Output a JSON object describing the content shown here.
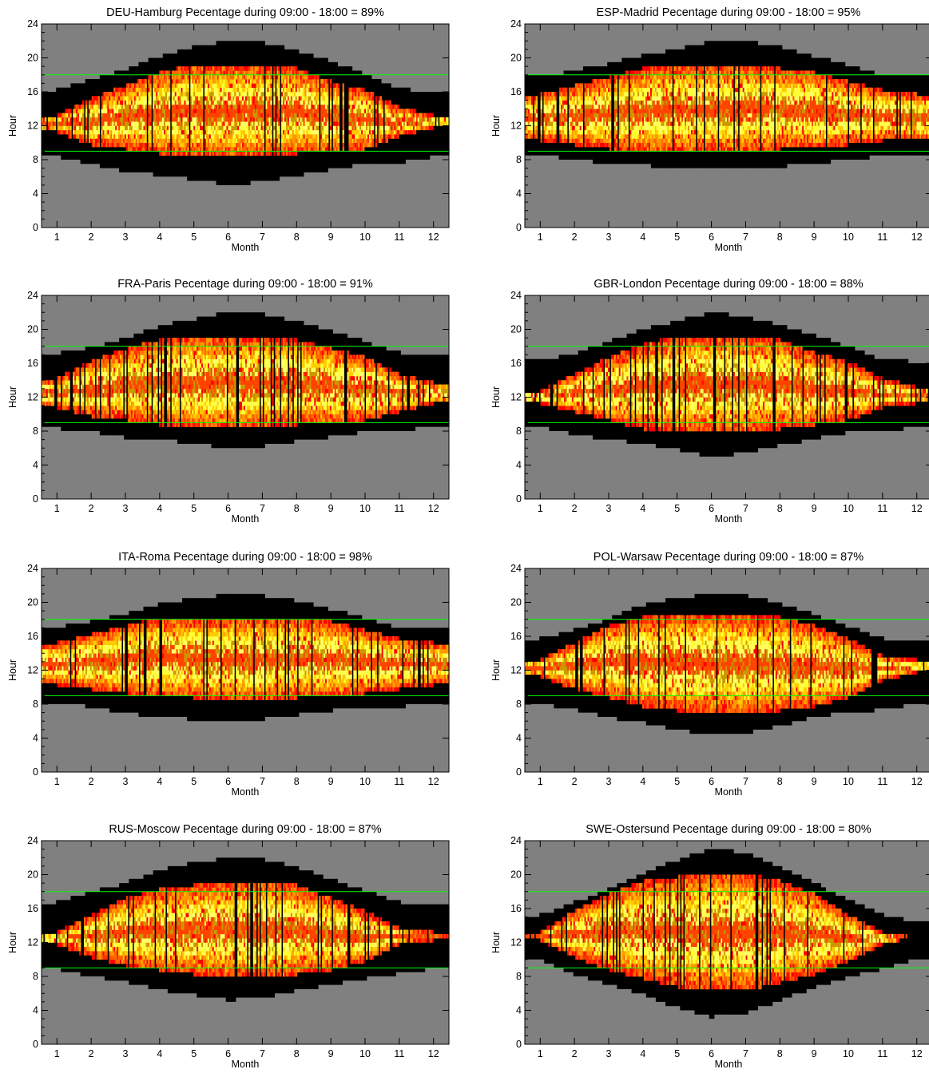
{
  "chart_data": [
    {
      "type": "heatmap",
      "title": "DEU-Hamburg  Pecentage during 09:00 - 18:00 =  89%",
      "xlabel": "Month",
      "ylabel": "Hour",
      "x_ticks": [
        "1",
        "2",
        "3",
        "4",
        "5",
        "6",
        "7",
        "8",
        "9",
        "10",
        "11",
        "12"
      ],
      "y_ticks": [
        "0",
        "4",
        "8",
        "12",
        "16",
        "20",
        "24"
      ],
      "xlim": [
        0.55,
        12.45
      ],
      "ylim": [
        0,
        24
      ],
      "reference_lines_hour": [
        9,
        18
      ],
      "reference_line_color": "#00ff00",
      "background_color": "#808080",
      "percentage": 89,
      "night_color": "#000000",
      "daylight_hours_by_month": {
        "month": [
          1,
          2,
          3,
          4,
          5,
          6,
          7,
          8,
          9,
          10,
          11,
          12
        ],
        "sunrise": [
          8.3,
          7.5,
          6.6,
          6.2,
          5.6,
          5.0,
          5.4,
          6.1,
          6.8,
          7.6,
          7.6,
          8.3
        ],
        "sunset": [
          16.2,
          17.4,
          18.6,
          20.2,
          21.4,
          22.0,
          21.8,
          20.9,
          19.6,
          18.1,
          16.4,
          16.0
        ]
      },
      "sunshine_band_by_month": {
        "month": [
          1,
          2,
          3,
          4,
          5,
          6,
          7,
          8,
          9,
          10,
          11,
          12
        ],
        "start": [
          11.5,
          10.0,
          9.5,
          9.0,
          8.5,
          8.5,
          8.5,
          9.0,
          9.0,
          9.5,
          11.0,
          12.0
        ],
        "end": [
          13.0,
          15.0,
          16.5,
          18.0,
          19.0,
          19.0,
          19.0,
          18.5,
          17.0,
          16.0,
          14.0,
          13.0
        ]
      }
    },
    {
      "type": "heatmap",
      "title": "ESP-Madrid  Pecentage during 09:00 - 18:00 =  95%",
      "xlabel": "Month",
      "ylabel": "Hour",
      "x_ticks": [
        "1",
        "2",
        "3",
        "4",
        "5",
        "6",
        "7",
        "8",
        "9",
        "10",
        "11",
        "12"
      ],
      "y_ticks": [
        "0",
        "4",
        "8",
        "12",
        "16",
        "20",
        "24"
      ],
      "xlim": [
        0.55,
        12.45
      ],
      "ylim": [
        0,
        24
      ],
      "reference_lines_hour": [
        9,
        18
      ],
      "reference_line_color": "#00ff00",
      "background_color": "#808080",
      "percentage": 95,
      "night_color": "#000000",
      "daylight_hours_by_month": {
        "month": [
          1,
          2,
          3,
          4,
          5,
          6,
          7,
          8,
          9,
          10,
          11,
          12
        ],
        "sunrise": [
          8.4,
          8.1,
          7.5,
          7.3,
          7.0,
          7.0,
          7.0,
          7.2,
          7.5,
          8.0,
          8.4,
          8.4
        ],
        "sunset": [
          17.8,
          18.5,
          19.3,
          20.3,
          21.0,
          22.0,
          22.0,
          21.3,
          20.2,
          19.2,
          18.0,
          17.8
        ]
      },
      "sunshine_band_by_month": {
        "month": [
          1,
          2,
          3,
          4,
          5,
          6,
          7,
          8,
          9,
          10,
          11,
          12
        ],
        "start": [
          10.5,
          10.0,
          9.5,
          9.0,
          9.0,
          9.0,
          9.0,
          9.5,
          9.5,
          10.0,
          10.5,
          10.5
        ],
        "end": [
          15.5,
          16.5,
          17.5,
          18.5,
          19.0,
          19.0,
          19.0,
          18.5,
          18.0,
          17.0,
          16.0,
          15.5
        ]
      }
    },
    {
      "type": "heatmap",
      "title": "FRA-Paris  Pecentage during 09:00 - 18:00 =  91%",
      "xlabel": "Month",
      "ylabel": "Hour",
      "x_ticks": [
        "1",
        "2",
        "3",
        "4",
        "5",
        "6",
        "7",
        "8",
        "9",
        "10",
        "11",
        "12"
      ],
      "y_ticks": [
        "0",
        "4",
        "8",
        "12",
        "16",
        "20",
        "24"
      ],
      "xlim": [
        0.55,
        12.45
      ],
      "ylim": [
        0,
        24
      ],
      "reference_lines_hour": [
        9,
        18
      ],
      "reference_line_color": "#00ff00",
      "background_color": "#808080",
      "percentage": 91,
      "night_color": "#000000",
      "daylight_hours_by_month": {
        "month": [
          1,
          2,
          3,
          4,
          5,
          6,
          7,
          8,
          9,
          10,
          11,
          12
        ],
        "sunrise": [
          8.3,
          8.0,
          7.2,
          7.0,
          6.5,
          6.0,
          6.2,
          6.8,
          7.3,
          7.9,
          8.2,
          8.3
        ],
        "sunset": [
          17.2,
          17.9,
          18.9,
          20.4,
          21.2,
          22.0,
          21.8,
          21.0,
          19.9,
          18.6,
          17.2,
          17.0
        ]
      },
      "sunshine_band_by_month": {
        "month": [
          1,
          2,
          3,
          4,
          5,
          6,
          7,
          8,
          9,
          10,
          11,
          12
        ],
        "start": [
          11.0,
          10.0,
          9.5,
          9.0,
          8.5,
          8.5,
          8.5,
          9.0,
          9.0,
          9.5,
          10.5,
          11.5
        ],
        "end": [
          14.0,
          16.0,
          17.5,
          18.5,
          19.0,
          19.0,
          19.0,
          18.5,
          17.5,
          16.5,
          14.5,
          13.5
        ]
      }
    },
    {
      "type": "heatmap",
      "title": "GBR-London  Pecentage during 09:00 - 18:00 =  88%",
      "xlabel": "Month",
      "ylabel": "Hour",
      "x_ticks": [
        "1",
        "2",
        "3",
        "4",
        "5",
        "6",
        "7",
        "8",
        "9",
        "10",
        "11",
        "12"
      ],
      "y_ticks": [
        "0",
        "4",
        "8",
        "12",
        "16",
        "20",
        "24"
      ],
      "xlim": [
        0.55,
        12.45
      ],
      "ylim": [
        0,
        24
      ],
      "reference_lines_hour": [
        9,
        18
      ],
      "reference_line_color": "#00ff00",
      "background_color": "#808080",
      "percentage": 88,
      "night_color": "#000000",
      "daylight_hours_by_month": {
        "month": [
          1,
          2,
          3,
          4,
          5,
          6,
          7,
          8,
          9,
          10,
          11,
          12
        ],
        "sunrise": [
          8.4,
          7.6,
          6.9,
          6.6,
          5.8,
          5.0,
          5.4,
          6.3,
          7.1,
          7.8,
          8.0,
          8.4
        ],
        "sunset": [
          16.3,
          17.2,
          18.5,
          20.0,
          21.0,
          22.0,
          21.5,
          20.5,
          19.4,
          18.0,
          16.4,
          16.2
        ]
      },
      "sunshine_band_by_month": {
        "month": [
          1,
          2,
          3,
          4,
          5,
          6,
          7,
          8,
          9,
          10,
          11,
          12
        ],
        "start": [
          11.5,
          10.5,
          9.5,
          8.5,
          8.0,
          8.0,
          8.0,
          8.5,
          9.0,
          9.5,
          11.0,
          11.5
        ],
        "end": [
          12.5,
          14.5,
          16.5,
          18.0,
          19.0,
          19.0,
          19.0,
          18.5,
          17.0,
          16.0,
          14.0,
          13.0
        ]
      }
    },
    {
      "type": "heatmap",
      "title": "ITA-Roma  Pecentage during 09:00 - 18:00 =  98%",
      "xlabel": "Month",
      "ylabel": "Hour",
      "x_ticks": [
        "1",
        "2",
        "3",
        "4",
        "5",
        "6",
        "7",
        "8",
        "9",
        "10",
        "11",
        "12"
      ],
      "y_ticks": [
        "0",
        "4",
        "8",
        "12",
        "16",
        "20",
        "24"
      ],
      "xlim": [
        0.55,
        12.45
      ],
      "ylim": [
        0,
        24
      ],
      "reference_lines_hour": [
        9,
        18
      ],
      "reference_line_color": "#00ff00",
      "background_color": "#808080",
      "percentage": 98,
      "night_color": "#000000",
      "daylight_hours_by_month": {
        "month": [
          1,
          2,
          3,
          4,
          5,
          6,
          7,
          8,
          9,
          10,
          11,
          12
        ],
        "sunrise": [
          8.0,
          7.7,
          6.9,
          6.5,
          6.2,
          6.0,
          6.2,
          6.7,
          7.2,
          7.7,
          7.7,
          8.0
        ],
        "sunset": [
          17.0,
          17.8,
          18.6,
          19.9,
          20.4,
          21.0,
          20.8,
          20.2,
          19.2,
          18.1,
          17.0,
          16.9
        ]
      },
      "sunshine_band_by_month": {
        "month": [
          1,
          2,
          3,
          4,
          5,
          6,
          7,
          8,
          9,
          10,
          11,
          12
        ],
        "start": [
          10.5,
          10.0,
          9.5,
          9.0,
          9.0,
          8.5,
          8.5,
          9.0,
          9.0,
          9.5,
          10.0,
          10.5
        ],
        "end": [
          15.0,
          16.0,
          17.0,
          18.0,
          18.0,
          18.0,
          18.0,
          18.0,
          17.5,
          16.5,
          15.5,
          15.0
        ]
      }
    },
    {
      "type": "heatmap",
      "title": "POL-Warsaw  Pecentage during 09:00 - 18:00 =  87%",
      "xlabel": "Month",
      "ylabel": "Hour",
      "x_ticks": [
        "1",
        "2",
        "3",
        "4",
        "5",
        "6",
        "7",
        "8",
        "9",
        "10",
        "11",
        "12"
      ],
      "y_ticks": [
        "0",
        "4",
        "8",
        "12",
        "16",
        "20",
        "24"
      ],
      "xlim": [
        0.55,
        12.45
      ],
      "ylim": [
        0,
        24
      ],
      "reference_lines_hour": [
        9,
        18
      ],
      "reference_line_color": "#00ff00",
      "background_color": "#808080",
      "percentage": 87,
      "night_color": "#000000",
      "daylight_hours_by_month": {
        "month": [
          1,
          2,
          3,
          4,
          5,
          6,
          7,
          8,
          9,
          10,
          11,
          12
        ],
        "sunrise": [
          8.0,
          7.3,
          6.4,
          5.8,
          5.0,
          4.3,
          4.6,
          5.5,
          6.4,
          7.1,
          7.3,
          8.0
        ],
        "sunset": [
          15.7,
          16.8,
          18.0,
          19.7,
          20.5,
          21.0,
          20.8,
          19.9,
          18.6,
          17.2,
          15.7,
          15.5
        ]
      },
      "sunshine_band_by_month": {
        "month": [
          1,
          2,
          3,
          4,
          5,
          6,
          7,
          8,
          9,
          10,
          11,
          12
        ],
        "start": [
          11.5,
          10.0,
          9.0,
          8.0,
          7.5,
          7.0,
          7.0,
          7.5,
          8.0,
          9.0,
          11.0,
          12.0
        ],
        "end": [
          13.0,
          15.0,
          17.0,
          18.0,
          18.5,
          18.5,
          18.5,
          18.0,
          17.0,
          15.5,
          13.5,
          13.0
        ]
      }
    },
    {
      "type": "heatmap",
      "title": "RUS-Moscow  Pecentage during 09:00 - 18:00 =  87%",
      "xlabel": "Month",
      "ylabel": "Hour",
      "x_ticks": [
        "1",
        "2",
        "3",
        "4",
        "5",
        "6",
        "7",
        "8",
        "9",
        "10",
        "11",
        "12"
      ],
      "y_ticks": [
        "0",
        "4",
        "8",
        "12",
        "16",
        "20",
        "24"
      ],
      "xlim": [
        0.55,
        12.45
      ],
      "ylim": [
        0,
        24
      ],
      "reference_lines_hour": [
        9,
        18
      ],
      "reference_line_color": "#00ff00",
      "background_color": "#808080",
      "percentage": 87,
      "night_color": "#000000",
      "daylight_hours_by_month": {
        "month": [
          1,
          2,
          3,
          4,
          5,
          6,
          7,
          8,
          9,
          10,
          11,
          12
        ],
        "sunrise": [
          8.9,
          8.0,
          7.3,
          6.4,
          5.8,
          5.2,
          5.5,
          6.3,
          7.0,
          7.7,
          8.3,
          8.9
        ],
        "sunset": [
          16.7,
          17.9,
          19.0,
          20.5,
          21.4,
          22.0,
          21.8,
          20.9,
          19.5,
          18.1,
          16.8,
          16.3
        ]
      },
      "sunshine_band_by_month": {
        "month": [
          1,
          2,
          3,
          4,
          5,
          6,
          7,
          8,
          9,
          10,
          11,
          12
        ],
        "start": [
          12.0,
          10.5,
          9.5,
          9.0,
          8.5,
          8.0,
          8.0,
          8.5,
          9.0,
          10.0,
          12.0,
          12.5
        ],
        "end": [
          13.0,
          15.0,
          17.0,
          18.0,
          18.5,
          19.0,
          19.0,
          18.5,
          17.0,
          15.5,
          13.5,
          13.0
        ]
      }
    },
    {
      "type": "heatmap",
      "title": "SWE-Ostersund  Pecentage during 09:00 - 18:00 =  80%",
      "xlabel": "Month",
      "ylabel": "Hour",
      "x_ticks": [
        "1",
        "2",
        "3",
        "4",
        "5",
        "6",
        "7",
        "8",
        "9",
        "10",
        "11",
        "12"
      ],
      "y_ticks": [
        "0",
        "4",
        "8",
        "12",
        "16",
        "20",
        "24"
      ],
      "xlim": [
        0.55,
        12.45
      ],
      "ylim": [
        0,
        24
      ],
      "reference_lines_hour": [
        9,
        18
      ],
      "reference_line_color": "#00ff00",
      "background_color": "#808080",
      "percentage": 80,
      "night_color": "#000000",
      "daylight_hours_by_month": {
        "month": [
          1,
          2,
          3,
          4,
          5,
          6,
          7,
          8,
          9,
          10,
          11,
          12
        ],
        "sunrise": [
          9.9,
          8.2,
          7.0,
          5.9,
          4.3,
          3.2,
          3.6,
          5.2,
          6.6,
          7.9,
          8.8,
          10.0
        ],
        "sunset": [
          15.2,
          16.7,
          18.2,
          20.1,
          21.7,
          23.0,
          22.6,
          20.8,
          19.0,
          17.0,
          15.2,
          14.4
        ]
      },
      "sunshine_band_by_month": {
        "month": [
          1,
          2,
          3,
          4,
          5,
          6,
          7,
          8,
          9,
          10,
          11,
          12
        ],
        "start": [
          12.5,
          10.5,
          9.0,
          8.0,
          7.0,
          6.5,
          6.5,
          7.5,
          8.5,
          10.0,
          12.0,
          13.0
        ],
        "end": [
          13.0,
          15.5,
          17.5,
          19.0,
          19.5,
          20.0,
          20.0,
          19.0,
          17.5,
          15.0,
          13.0,
          13.0
        ]
      }
    }
  ]
}
